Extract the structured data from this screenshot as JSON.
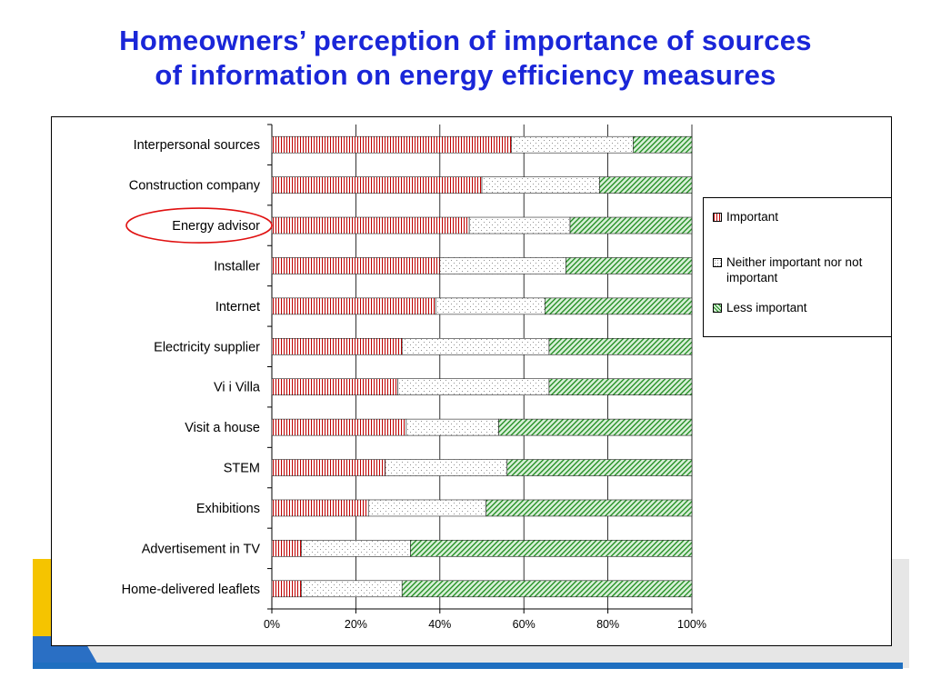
{
  "title_lines": [
    "Homeowners’ perception of importance of sources",
    "of information on energy efficiency measures"
  ],
  "colors": {
    "title": "#1a26d8",
    "important": "#c00000",
    "neither": "#909090",
    "less_important": "#1a8a1a",
    "annotation_circle": "#e01010",
    "deco_blue": "#1f6fc0",
    "deco_yellow": "#f5c400",
    "deco_gray": "#e6e6e6"
  },
  "chart_data": {
    "type": "bar",
    "orientation": "horizontal",
    "stacked": "percent",
    "categories": [
      "Interpersonal sources",
      "Construction company",
      "Energy advisor",
      "Installer",
      "Internet",
      "Electricity supplier",
      "Vi i Villa",
      "Visit a house",
      "STEM",
      "Exhibitions",
      "Advertisement in TV",
      "Home-delivered leaflets"
    ],
    "series": [
      {
        "name": "Important",
        "pattern": "vertical-stripes",
        "values": [
          57,
          50,
          47,
          40,
          39,
          31,
          30,
          32,
          27,
          23,
          7,
          7
        ]
      },
      {
        "name": "Neither important nor not important",
        "pattern": "dots",
        "values": [
          29,
          28,
          24,
          30,
          26,
          35,
          36,
          22,
          29,
          28,
          26,
          24
        ]
      },
      {
        "name": "Less important",
        "pattern": "diagonal-stripes",
        "values": [
          14,
          22,
          29,
          30,
          35,
          34,
          34,
          46,
          44,
          49,
          67,
          69
        ]
      }
    ],
    "x_ticks": [
      "0%",
      "20%",
      "40%",
      "60%",
      "80%",
      "100%"
    ],
    "xlim": [
      0,
      100
    ],
    "grid": "vertical",
    "legend_position": "right",
    "highlighted_category": "Energy advisor"
  }
}
